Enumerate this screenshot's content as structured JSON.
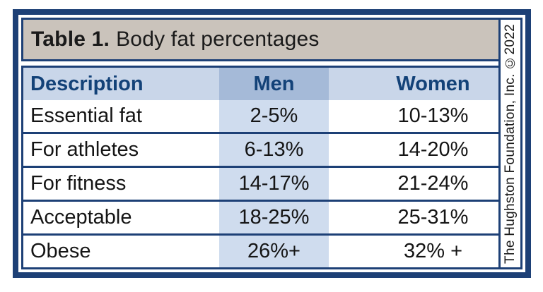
{
  "title": {
    "label": "Table 1.",
    "text": "Body fat percentages"
  },
  "table": {
    "columns": [
      "Description",
      "Men",
      "Women"
    ],
    "rows": [
      {
        "description": "Essential fat",
        "men": "2-5%",
        "women": "10-13%"
      },
      {
        "description": "For athletes",
        "men": "6-13%",
        "women": "14-20%"
      },
      {
        "description": "For fitness",
        "men": "14-17%",
        "women": "21-24%"
      },
      {
        "description": "Acceptable",
        "men": "18-25%",
        "women": "25-31%"
      },
      {
        "description": "Obese",
        "men": "26%+",
        "women": "32% +"
      }
    ]
  },
  "credit": "The Hughston Foundation, Inc. ©2022",
  "colors": {
    "navy_border": "#1d4076",
    "header_text_navy": "#134278",
    "title_bar_tan": "#cac3bb",
    "header_row_blue": "#c9d6e9",
    "men_header_blue": "#a5bad8",
    "men_column_blue": "#cfdcee",
    "background": "#ffffff",
    "body_text": "#151515"
  }
}
